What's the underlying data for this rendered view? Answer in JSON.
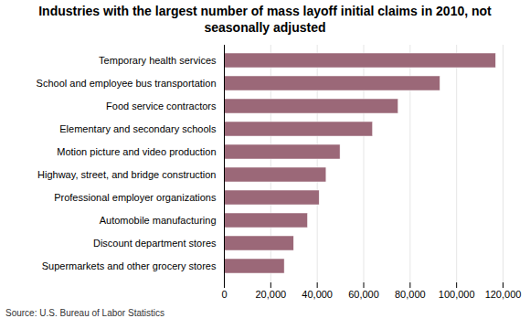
{
  "chart_data": {
    "type": "bar",
    "orientation": "horizontal",
    "title": "Industries with the largest number of mass layoff initial claims in 2010, not\nseasonally adjusted",
    "categories": [
      "Supermarkets and other grocery stores",
      "Discount department stores",
      "Automobile manufacturing",
      "Professional employer organizations",
      "Highway, street, and bridge construction",
      "Motion picture and video production",
      "Elementary and secondary schools",
      "Food service contractors",
      "School and employee bus transportation",
      "Temporary health services"
    ],
    "values": [
      26000,
      30000,
      36000,
      41000,
      44000,
      50000,
      64000,
      75000,
      93000,
      117000
    ],
    "color": "#9b6878",
    "xlim": [
      0,
      120000
    ],
    "xticks": [
      0,
      {
        "value": 20000,
        "label": "20,000"
      },
      {
        "value": 40000,
        "label": "40,000"
      },
      {
        "value": 60000,
        "label": "60,000"
      },
      {
        "value": 80000,
        "label": "80,000"
      },
      {
        "value": 100000,
        "label": "100,000"
      },
      {
        "value": 120000,
        "label": "120,000"
      }
    ],
    "grid": true,
    "annotations": [
      "Source: U.S. Bureau of Labor Statistics"
    ]
  }
}
